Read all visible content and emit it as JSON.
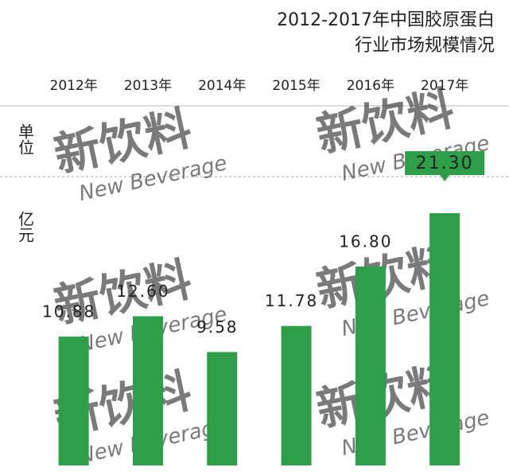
{
  "chart_data": {
    "type": "bar",
    "title": [
      "2012-2017年中国胶原蛋白",
      "行业市场规模情况"
    ],
    "unit_label": [
      "单位",
      "亿元"
    ],
    "categories": [
      "2012年",
      "2013年",
      "2014年",
      "2015年",
      "2016年",
      "2017年"
    ],
    "values": [
      10.88,
      12.6,
      9.58,
      11.78,
      16.8,
      21.3
    ],
    "value_labels": [
      "10.88",
      "12.60",
      "9.58",
      "11.78",
      "16.80",
      "21.30"
    ],
    "color": "#2e9e48",
    "watermark": [
      "新饮料",
      "New Beverage"
    ]
  }
}
